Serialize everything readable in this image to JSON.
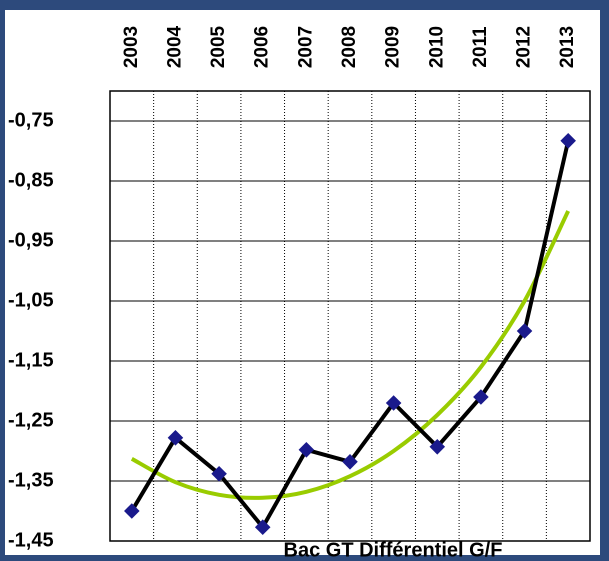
{
  "chart_data": {
    "type": "line",
    "annotation": "Bac GT Différentiel G/F",
    "categories": [
      "2003",
      "2004",
      "2005",
      "2006",
      "2007",
      "2008",
      "2009",
      "2010",
      "2011",
      "2012",
      "2013"
    ],
    "series": [
      {
        "color": "#000000",
        "marker_color": "#1a1a8c",
        "values": [
          -1.4,
          -1.278,
          -1.338,
          -1.427,
          -1.298,
          -1.318,
          -1.22,
          -1.293,
          -1.21,
          -1.1,
          -0.783
        ]
      },
      {
        "color": "#99cc00",
        "values": [
          -1.313,
          -1.352,
          -1.373,
          -1.378,
          -1.368,
          -1.342,
          -1.3,
          -1.24,
          -1.16,
          -1.05,
          -0.9
        ]
      }
    ],
    "ylim": [
      -1.45,
      -0.7
    ],
    "yticks": [
      {
        "value": -0.75,
        "label": "-0,75"
      },
      {
        "value": -0.85,
        "label": "-0,85"
      },
      {
        "value": -0.95,
        "label": "-0,95"
      },
      {
        "value": -1.05,
        "label": "-1,05"
      },
      {
        "value": -1.15,
        "label": "-1,15"
      },
      {
        "value": -1.25,
        "label": "-1,25"
      },
      {
        "value": -1.35,
        "label": "-1,35"
      },
      {
        "value": -1.45,
        "label": "-1,45"
      }
    ],
    "grid": true
  }
}
